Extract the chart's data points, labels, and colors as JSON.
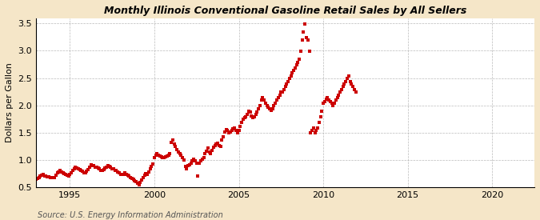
{
  "title": "Monthly Illinois Conventional Gasoline Retail Sales by All Sellers",
  "ylabel": "Dollars per Gallon",
  "source_text": "Source: U.S. Energy Information Administration",
  "fig_background_color": "#f5e6c8",
  "plot_background_color": "#ffffff",
  "marker_color": "#cc0000",
  "xlim": [
    1993.0,
    2022.5
  ],
  "ylim": [
    0.5,
    3.6
  ],
  "yticks": [
    0.5,
    1.0,
    1.5,
    2.0,
    2.5,
    3.0,
    3.5
  ],
  "xticks": [
    1995,
    2000,
    2005,
    2010,
    2015,
    2020
  ],
  "data": [
    [
      1993.0,
      0.64
    ],
    [
      1993.083,
      0.66
    ],
    [
      1993.167,
      0.68
    ],
    [
      1993.25,
      0.7
    ],
    [
      1993.333,
      0.72
    ],
    [
      1993.417,
      0.73
    ],
    [
      1993.5,
      0.71
    ],
    [
      1993.583,
      0.7
    ],
    [
      1993.667,
      0.69
    ],
    [
      1993.75,
      0.69
    ],
    [
      1993.833,
      0.68
    ],
    [
      1993.917,
      0.67
    ],
    [
      1994.0,
      0.67
    ],
    [
      1994.083,
      0.68
    ],
    [
      1994.167,
      0.72
    ],
    [
      1994.25,
      0.76
    ],
    [
      1994.333,
      0.78
    ],
    [
      1994.417,
      0.8
    ],
    [
      1994.5,
      0.78
    ],
    [
      1994.583,
      0.76
    ],
    [
      1994.667,
      0.75
    ],
    [
      1994.75,
      0.73
    ],
    [
      1994.833,
      0.72
    ],
    [
      1994.917,
      0.71
    ],
    [
      1995.0,
      0.73
    ],
    [
      1995.083,
      0.76
    ],
    [
      1995.167,
      0.81
    ],
    [
      1995.25,
      0.84
    ],
    [
      1995.333,
      0.86
    ],
    [
      1995.417,
      0.85
    ],
    [
      1995.5,
      0.83
    ],
    [
      1995.583,
      0.82
    ],
    [
      1995.667,
      0.81
    ],
    [
      1995.75,
      0.79
    ],
    [
      1995.833,
      0.77
    ],
    [
      1995.917,
      0.76
    ],
    [
      1996.0,
      0.79
    ],
    [
      1996.083,
      0.82
    ],
    [
      1996.167,
      0.87
    ],
    [
      1996.25,
      0.91
    ],
    [
      1996.333,
      0.9
    ],
    [
      1996.417,
      0.89
    ],
    [
      1996.5,
      0.87
    ],
    [
      1996.583,
      0.86
    ],
    [
      1996.667,
      0.85
    ],
    [
      1996.75,
      0.83
    ],
    [
      1996.833,
      0.81
    ],
    [
      1996.917,
      0.8
    ],
    [
      1997.0,
      0.82
    ],
    [
      1997.083,
      0.85
    ],
    [
      1997.167,
      0.87
    ],
    [
      1997.25,
      0.89
    ],
    [
      1997.333,
      0.88
    ],
    [
      1997.417,
      0.86
    ],
    [
      1997.5,
      0.84
    ],
    [
      1997.583,
      0.83
    ],
    [
      1997.667,
      0.81
    ],
    [
      1997.75,
      0.8
    ],
    [
      1997.833,
      0.78
    ],
    [
      1997.917,
      0.76
    ],
    [
      1998.0,
      0.74
    ],
    [
      1998.083,
      0.73
    ],
    [
      1998.167,
      0.74
    ],
    [
      1998.25,
      0.76
    ],
    [
      1998.333,
      0.74
    ],
    [
      1998.417,
      0.72
    ],
    [
      1998.5,
      0.7
    ],
    [
      1998.583,
      0.68
    ],
    [
      1998.667,
      0.66
    ],
    [
      1998.75,
      0.64
    ],
    [
      1998.833,
      0.62
    ],
    [
      1998.917,
      0.6
    ],
    [
      1999.0,
      0.57
    ],
    [
      1999.083,
      0.55
    ],
    [
      1999.167,
      0.58
    ],
    [
      1999.25,
      0.63
    ],
    [
      1999.333,
      0.68
    ],
    [
      1999.417,
      0.72
    ],
    [
      1999.5,
      0.75
    ],
    [
      1999.583,
      0.74
    ],
    [
      1999.667,
      0.78
    ],
    [
      1999.75,
      0.83
    ],
    [
      1999.833,
      0.88
    ],
    [
      1999.917,
      0.93
    ],
    [
      2000.0,
      1.04
    ],
    [
      2000.083,
      1.09
    ],
    [
      2000.167,
      1.11
    ],
    [
      2000.25,
      1.09
    ],
    [
      2000.333,
      1.07
    ],
    [
      2000.417,
      1.05
    ],
    [
      2000.5,
      1.04
    ],
    [
      2000.583,
      1.04
    ],
    [
      2000.667,
      1.05
    ],
    [
      2000.75,
      1.07
    ],
    [
      2000.833,
      1.09
    ],
    [
      2000.917,
      1.11
    ],
    [
      2001.0,
      1.32
    ],
    [
      2001.083,
      1.36
    ],
    [
      2001.167,
      1.29
    ],
    [
      2001.25,
      1.24
    ],
    [
      2001.333,
      1.19
    ],
    [
      2001.417,
      1.14
    ],
    [
      2001.5,
      1.11
    ],
    [
      2001.583,
      1.09
    ],
    [
      2001.667,
      1.04
    ],
    [
      2001.75,
      1.0
    ],
    [
      2001.833,
      0.88
    ],
    [
      2001.917,
      0.84
    ],
    [
      2002.0,
      0.89
    ],
    [
      2002.083,
      0.91
    ],
    [
      2002.167,
      0.94
    ],
    [
      2002.25,
      0.99
    ],
    [
      2002.333,
      1.01
    ],
    [
      2002.417,
      0.99
    ],
    [
      2002.5,
      0.94
    ],
    [
      2002.583,
      0.71
    ],
    [
      2002.667,
      0.94
    ],
    [
      2002.75,
      0.99
    ],
    [
      2002.833,
      1.01
    ],
    [
      2002.917,
      1.04
    ],
    [
      2003.0,
      1.11
    ],
    [
      2003.083,
      1.16
    ],
    [
      2003.167,
      1.22
    ],
    [
      2003.25,
      1.14
    ],
    [
      2003.333,
      1.12
    ],
    [
      2003.417,
      1.18
    ],
    [
      2003.5,
      1.23
    ],
    [
      2003.583,
      1.26
    ],
    [
      2003.667,
      1.29
    ],
    [
      2003.75,
      1.31
    ],
    [
      2003.833,
      1.26
    ],
    [
      2003.917,
      1.24
    ],
    [
      2004.0,
      1.36
    ],
    [
      2004.083,
      1.43
    ],
    [
      2004.167,
      1.51
    ],
    [
      2004.25,
      1.56
    ],
    [
      2004.333,
      1.54
    ],
    [
      2004.417,
      1.49
    ],
    [
      2004.5,
      1.51
    ],
    [
      2004.583,
      1.54
    ],
    [
      2004.667,
      1.57
    ],
    [
      2004.75,
      1.59
    ],
    [
      2004.833,
      1.54
    ],
    [
      2004.917,
      1.49
    ],
    [
      2005.0,
      1.54
    ],
    [
      2005.083,
      1.61
    ],
    [
      2005.167,
      1.69
    ],
    [
      2005.25,
      1.74
    ],
    [
      2005.333,
      1.77
    ],
    [
      2005.417,
      1.79
    ],
    [
      2005.5,
      1.84
    ],
    [
      2005.583,
      1.89
    ],
    [
      2005.667,
      1.87
    ],
    [
      2005.75,
      1.81
    ],
    [
      2005.833,
      1.77
    ],
    [
      2005.917,
      1.79
    ],
    [
      2006.0,
      1.84
    ],
    [
      2006.083,
      1.87
    ],
    [
      2006.167,
      1.94
    ],
    [
      2006.25,
      1.99
    ],
    [
      2006.333,
      2.09
    ],
    [
      2006.417,
      2.14
    ],
    [
      2006.5,
      2.09
    ],
    [
      2006.583,
      2.04
    ],
    [
      2006.667,
      1.99
    ],
    [
      2006.75,
      1.97
    ],
    [
      2006.833,
      1.94
    ],
    [
      2006.917,
      1.91
    ],
    [
      2007.0,
      1.94
    ],
    [
      2007.083,
      1.99
    ],
    [
      2007.167,
      2.04
    ],
    [
      2007.25,
      2.09
    ],
    [
      2007.333,
      2.14
    ],
    [
      2007.417,
      2.19
    ],
    [
      2007.5,
      2.24
    ],
    [
      2007.583,
      2.24
    ],
    [
      2007.667,
      2.29
    ],
    [
      2007.75,
      2.34
    ],
    [
      2007.833,
      2.39
    ],
    [
      2007.917,
      2.44
    ],
    [
      2008.0,
      2.49
    ],
    [
      2008.083,
      2.54
    ],
    [
      2008.167,
      2.59
    ],
    [
      2008.25,
      2.64
    ],
    [
      2008.333,
      2.69
    ],
    [
      2008.417,
      2.74
    ],
    [
      2008.5,
      2.79
    ],
    [
      2008.583,
      2.84
    ],
    [
      2008.667,
      2.99
    ],
    [
      2008.75,
      3.19
    ],
    [
      2008.833,
      3.34
    ],
    [
      2008.917,
      3.49
    ],
    [
      2009.0,
      3.24
    ],
    [
      2009.083,
      3.19
    ],
    [
      2009.167,
      2.99
    ],
    [
      2009.25,
      1.49
    ],
    [
      2009.333,
      1.54
    ],
    [
      2009.417,
      1.59
    ],
    [
      2009.5,
      1.49
    ],
    [
      2009.583,
      1.54
    ],
    [
      2009.667,
      1.59
    ],
    [
      2009.75,
      1.69
    ],
    [
      2009.833,
      1.79
    ],
    [
      2009.917,
      1.89
    ],
    [
      2010.0,
      2.04
    ],
    [
      2010.083,
      2.07
    ],
    [
      2010.167,
      2.11
    ],
    [
      2010.25,
      2.14
    ],
    [
      2010.333,
      2.09
    ],
    [
      2010.417,
      2.07
    ],
    [
      2010.5,
      2.04
    ],
    [
      2010.583,
      1.99
    ],
    [
      2010.667,
      2.04
    ],
    [
      2010.75,
      2.09
    ],
    [
      2010.833,
      2.14
    ],
    [
      2010.917,
      2.19
    ],
    [
      2011.0,
      2.24
    ],
    [
      2011.083,
      2.29
    ],
    [
      2011.167,
      2.34
    ],
    [
      2011.25,
      2.39
    ],
    [
      2011.333,
      2.44
    ],
    [
      2011.417,
      2.49
    ],
    [
      2011.5,
      2.54
    ],
    [
      2011.583,
      2.44
    ],
    [
      2011.667,
      2.39
    ],
    [
      2011.75,
      2.34
    ],
    [
      2011.833,
      2.29
    ],
    [
      2011.917,
      2.24
    ]
  ]
}
